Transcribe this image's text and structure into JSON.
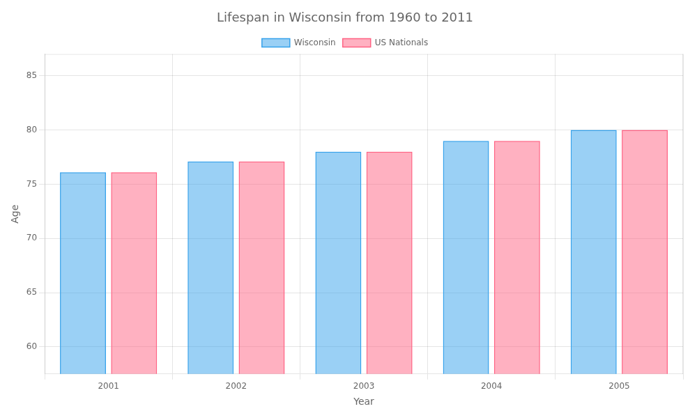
{
  "chart_data": {
    "type": "bar",
    "title": "Lifespan in Wisconsin from 1960 to 2011",
    "xlabel": "Year",
    "ylabel": "Age",
    "categories": [
      "2001",
      "2002",
      "2003",
      "2004",
      "2005"
    ],
    "series": [
      {
        "name": "Wisconsin",
        "values": [
          76.1,
          77.1,
          78.0,
          79.0,
          80.0
        ]
      },
      {
        "name": "US Nationals",
        "values": [
          76.1,
          77.1,
          78.0,
          79.0,
          80.0
        ]
      }
    ],
    "ylim": [
      57.5,
      87
    ],
    "yticks": [
      60,
      65,
      70,
      75,
      80,
      85
    ],
    "grid": true,
    "legend": "top"
  }
}
